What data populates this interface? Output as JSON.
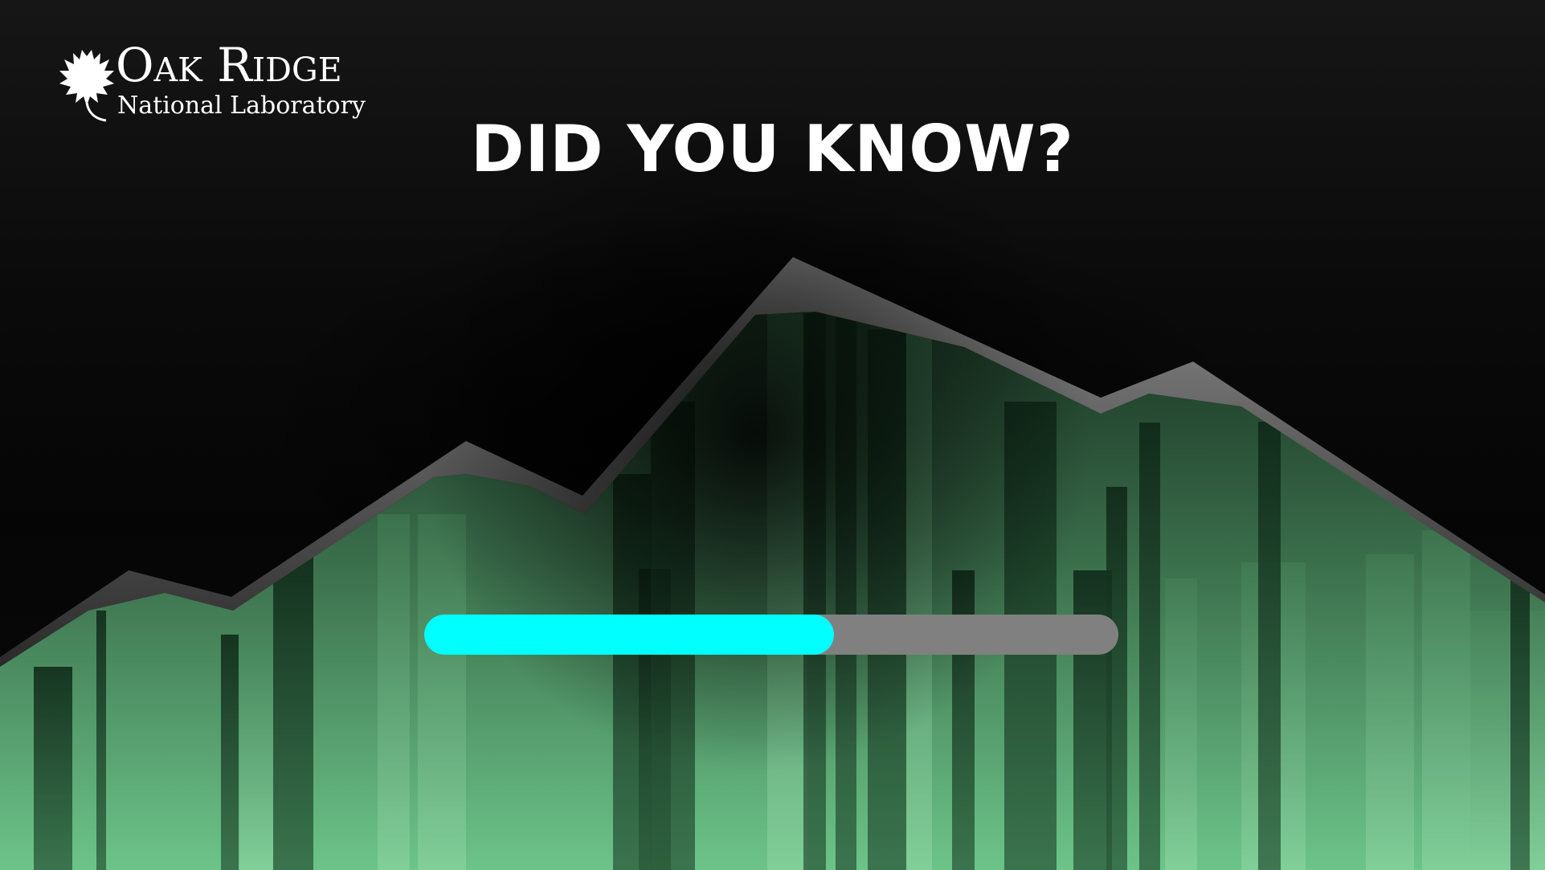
{
  "logo": {
    "line1": "Oak Ridge",
    "line2": "National Laboratory",
    "icon": "oak-leaf-icon"
  },
  "headline": "DID YOU KNOW?",
  "loading": {
    "progress": 0.59
  },
  "colors": {
    "background": "#0c0c0c",
    "progress_fill": "#00ffff",
    "progress_track": "#808080",
    "landscape_green": "#5fbf7a",
    "ridge_gray": "#8a8a8a"
  }
}
